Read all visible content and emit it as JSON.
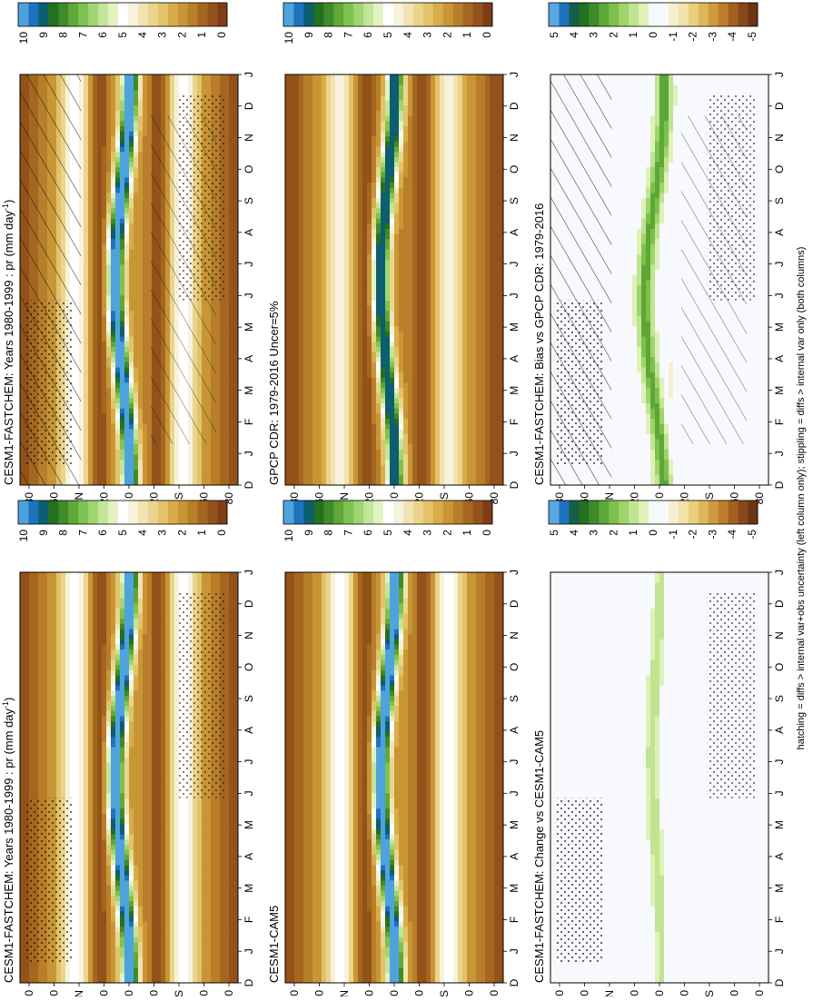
{
  "figure": {
    "footnote": "hatching = diffs > internal var+obs uncertainty (left column only); stippling = diffs > internal var only (both columns)"
  },
  "colors": {
    "absolute": [
      "#7f3d17",
      "#92521a",
      "#a5671f",
      "#b87e2a",
      "#c99636",
      "#d8ad49",
      "#e3c26a",
      "#ebd48d",
      "#f1e4b2",
      "#f7f2dc",
      "#ffffff",
      "#e3f2c2",
      "#c3e59a",
      "#a0d672",
      "#7fc251",
      "#5fa838",
      "#3f8a2a",
      "#24701f",
      "#0d5e6f",
      "#1e73be",
      "#4fa3dd"
    ],
    "difference": [
      "#6b3412",
      "#87481a",
      "#a3601f",
      "#bc7d2c",
      "#cf9b3f",
      "#dfb65c",
      "#ead07e",
      "#f1e3a8",
      "#f6efce",
      "#f7f9fd",
      "#f7f9fd",
      "#dff0b8",
      "#c0e491",
      "#9fd46c",
      "#7dc04d",
      "#5ea737",
      "#3f8a2a",
      "#24701f",
      "#145f4a",
      "#1e73be",
      "#5aa8e0"
    ]
  },
  "panels": [
    {
      "id": "model-bias-source",
      "title": "CESM1-FASTCHEM: Years 1980-1999 : pr (mm day",
      "title_sup": "-1",
      "title_tail": ")",
      "colorbar_ticks": [
        "10",
        "9",
        "8",
        "7",
        "6",
        "5",
        "4",
        "3",
        "2",
        "1",
        "0"
      ]
    },
    {
      "id": "model-change-source",
      "title": "CESM1-FASTCHEM: Years 1980-1999 : pr (mm day",
      "title_sup": "-1",
      "title_tail": ")",
      "colorbar_ticks": [
        "10",
        "9",
        "8",
        "7",
        "6",
        "5",
        "4",
        "3",
        "2",
        "1",
        "0"
      ]
    },
    {
      "id": "obs",
      "title": "GPCP CDR: 1979-2016 Uncer=5%",
      "title_sup": "",
      "title_tail": "",
      "colorbar_ticks": [
        "10",
        "9",
        "8",
        "7",
        "6",
        "5",
        "4",
        "3",
        "2",
        "1",
        "0"
      ]
    },
    {
      "id": "ref-model",
      "title": "CESM1-CAM5",
      "title_sup": "",
      "title_tail": "",
      "colorbar_ticks": [
        "10",
        "9",
        "8",
        "7",
        "6",
        "5",
        "4",
        "3",
        "2",
        "1",
        "0"
      ]
    },
    {
      "id": "bias",
      "title": "CESM1-FASTCHEM: Bias vs GPCP CDR: 1979-2016",
      "title_sup": "",
      "title_tail": "",
      "colorbar_ticks": [
        "5",
        "4",
        "3",
        "2",
        "1",
        "0",
        "-1",
        "-2",
        "-3",
        "-4",
        "-5"
      ]
    },
    {
      "id": "change",
      "title": "CESM1-FASTCHEM: Change vs CESM1-CAM5",
      "title_sup": "",
      "title_tail": "",
      "colorbar_ticks": [
        "5",
        "4",
        "3",
        "2",
        "1",
        "0",
        "-1",
        "-2",
        "-3",
        "-4",
        "-5"
      ]
    }
  ],
  "chart_data": [
    {
      "type": "heatmap",
      "title": "CESM1-FASTCHEM: Years 1980-1999 : pr (mm day-1)",
      "variable": "pr",
      "units": "mm day-1",
      "x": [
        "D",
        "J",
        "F",
        "M",
        "A",
        "M",
        "J",
        "J",
        "A",
        "S",
        "O",
        "N",
        "D",
        "J"
      ],
      "y_ticks": [
        "80",
        "60",
        "°N",
        "20",
        "0",
        "20",
        "°S",
        "60",
        "80"
      ],
      "clim": [
        0,
        10
      ],
      "colorbar_levels": [
        "10",
        "9",
        "8",
        "7",
        "6",
        "5",
        "4",
        "3",
        "2",
        "1",
        "0"
      ]
    },
    {
      "type": "heatmap",
      "title": "GPCP CDR: 1979-2016 Uncer=5%",
      "variable": "pr",
      "units": "mm day-1",
      "x": [
        "D",
        "J",
        "F",
        "M",
        "A",
        "M",
        "J",
        "J",
        "A",
        "S",
        "O",
        "N",
        "D",
        "J"
      ],
      "y_ticks": [
        "80",
        "60",
        "°N",
        "20",
        "0",
        "20",
        "°S",
        "60",
        "80"
      ],
      "clim": [
        0,
        10
      ],
      "colorbar_levels": [
        "10",
        "9",
        "8",
        "7",
        "6",
        "5",
        "4",
        "3",
        "2",
        "1",
        "0"
      ]
    },
    {
      "type": "heatmap",
      "title": "CESM1-CAM5",
      "variable": "pr",
      "units": "mm day-1",
      "x": [
        "D",
        "J",
        "F",
        "M",
        "A",
        "M",
        "J",
        "J",
        "A",
        "S",
        "O",
        "N",
        "D",
        "J"
      ],
      "y_ticks": [
        "80",
        "60",
        "°N",
        "20",
        "0",
        "20",
        "°S",
        "60",
        "80"
      ],
      "clim": [
        0,
        10
      ],
      "colorbar_levels": [
        "10",
        "9",
        "8",
        "7",
        "6",
        "5",
        "4",
        "3",
        "2",
        "1",
        "0"
      ]
    },
    {
      "type": "heatmap",
      "title": "CESM1-FASTCHEM: Bias vs GPCP CDR: 1979-2016",
      "variable": "pr bias",
      "units": "mm day-1",
      "x": [
        "D",
        "J",
        "F",
        "M",
        "A",
        "M",
        "J",
        "J",
        "A",
        "S",
        "O",
        "N",
        "D",
        "J"
      ],
      "y_ticks": [
        "80",
        "60",
        "°N",
        "20",
        "0",
        "20",
        "°S",
        "60",
        "80"
      ],
      "clim": [
        -5,
        5
      ],
      "colorbar_levels": [
        "5",
        "4",
        "3",
        "2",
        "1",
        "0",
        "-1",
        "-2",
        "-3",
        "-4",
        "-5"
      ]
    },
    {
      "type": "heatmap",
      "title": "CESM1-FASTCHEM: Change vs CESM1-CAM5",
      "variable": "pr change",
      "units": "mm day-1",
      "x": [
        "D",
        "J",
        "F",
        "M",
        "A",
        "M",
        "J",
        "J",
        "A",
        "S",
        "O",
        "N",
        "D",
        "J"
      ],
      "y_ticks": [
        "80",
        "60",
        "°N",
        "20",
        "0",
        "20",
        "°S",
        "60",
        "80"
      ],
      "clim": [
        -5,
        5
      ],
      "colorbar_levels": [
        "5",
        "4",
        "3",
        "2",
        "1",
        "0",
        "-1",
        "-2",
        "-3",
        "-4",
        "-5"
      ]
    }
  ]
}
